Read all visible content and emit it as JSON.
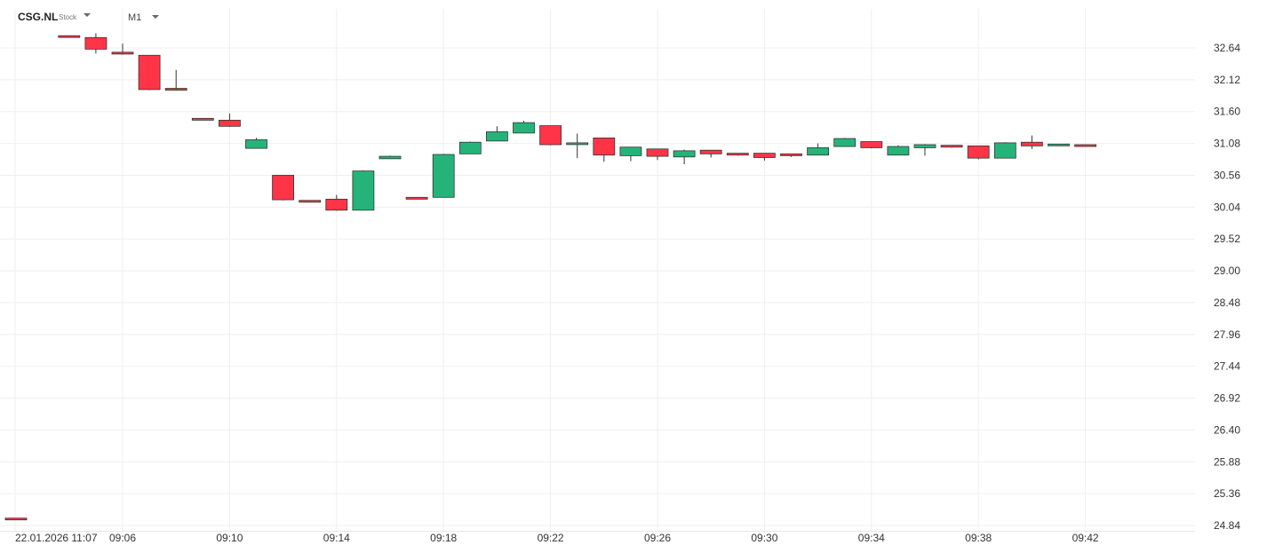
{
  "header": {
    "symbol": "CSG.NL",
    "symbol_type": "Stock",
    "timeframe": "M1"
  },
  "colors": {
    "up": "#26b37a",
    "down": "#ff3547",
    "grid": "#efefef",
    "axis_text": "#333333"
  },
  "chart_data": {
    "type": "candlestick",
    "ylim": [
      24.84,
      32.9
    ],
    "y_ticks": [
      "32.64",
      "32.12",
      "31.60",
      "31.08",
      "30.56",
      "30.04",
      "29.52",
      "29.00",
      "28.48",
      "27.96",
      "27.44",
      "26.92",
      "26.40",
      "25.88",
      "25.36",
      "24.84"
    ],
    "x_ticks": [
      {
        "label": "22.01.2026  11:07",
        "index": -3.7
      },
      {
        "label": "09:06",
        "index": 0
      },
      {
        "label": "09:10",
        "index": 4
      },
      {
        "label": "09:14",
        "index": 8
      },
      {
        "label": "09:18",
        "index": 12
      },
      {
        "label": "09:22",
        "index": 16
      },
      {
        "label": "09:26",
        "index": 20
      },
      {
        "label": "09:30",
        "index": 24
      },
      {
        "label": "09:34",
        "index": 28
      },
      {
        "label": "09:38",
        "index": 32
      },
      {
        "label": "09:42",
        "index": 36
      }
    ],
    "prior_candle": {
      "time": "11:07",
      "index": -4.2,
      "open": 24.96,
      "high": 24.96,
      "low": 24.95,
      "close": 24.95
    },
    "candles": [
      {
        "time": "09:04",
        "open": 32.84,
        "high": 32.84,
        "low": 32.82,
        "close": 32.82
      },
      {
        "time": "09:05",
        "open": 32.81,
        "high": 32.88,
        "low": 32.55,
        "close": 32.62
      },
      {
        "time": "09:06",
        "open": 32.57,
        "high": 32.71,
        "low": 32.53,
        "close": 32.54
      },
      {
        "time": "09:07",
        "open": 32.52,
        "high": 32.52,
        "low": 31.95,
        "close": 31.96
      },
      {
        "time": "09:08",
        "open": 31.98,
        "high": 32.28,
        "low": 31.94,
        "close": 31.95
      },
      {
        "time": "09:09",
        "open": 31.49,
        "high": 31.49,
        "low": 31.46,
        "close": 31.46
      },
      {
        "time": "09:10",
        "open": 31.46,
        "high": 31.57,
        "low": 31.35,
        "close": 31.36
      },
      {
        "time": "09:11",
        "open": 31.0,
        "high": 31.17,
        "low": 31.0,
        "close": 31.14
      },
      {
        "time": "09:12",
        "open": 30.56,
        "high": 30.56,
        "low": 30.15,
        "close": 30.16
      },
      {
        "time": "09:13",
        "open": 30.15,
        "high": 30.15,
        "low": 30.12,
        "close": 30.12
      },
      {
        "time": "09:14",
        "open": 30.17,
        "high": 30.24,
        "low": 29.98,
        "close": 29.99
      },
      {
        "time": "09:15",
        "open": 29.99,
        "high": 30.64,
        "low": 29.99,
        "close": 30.63
      },
      {
        "time": "09:16",
        "open": 30.83,
        "high": 30.88,
        "low": 30.83,
        "close": 30.87
      },
      {
        "time": "09:17",
        "open": 30.2,
        "high": 30.2,
        "low": 30.17,
        "close": 30.17
      },
      {
        "time": "09:18",
        "open": 30.2,
        "high": 30.91,
        "low": 30.2,
        "close": 30.9
      },
      {
        "time": "09:19",
        "open": 30.91,
        "high": 31.11,
        "low": 30.91,
        "close": 31.1
      },
      {
        "time": "09:20",
        "open": 31.12,
        "high": 31.36,
        "low": 31.12,
        "close": 31.27
      },
      {
        "time": "09:21",
        "open": 31.25,
        "high": 31.45,
        "low": 31.25,
        "close": 31.42
      },
      {
        "time": "09:22",
        "open": 31.37,
        "high": 31.37,
        "low": 31.05,
        "close": 31.06
      },
      {
        "time": "09:23",
        "open": 31.07,
        "high": 31.24,
        "low": 30.84,
        "close": 31.09
      },
      {
        "time": "09:24",
        "open": 31.17,
        "high": 31.17,
        "low": 30.78,
        "close": 30.89
      },
      {
        "time": "09:25",
        "open": 30.88,
        "high": 31.02,
        "low": 30.79,
        "close": 31.02
      },
      {
        "time": "09:26",
        "open": 30.99,
        "high": 30.99,
        "low": 30.81,
        "close": 30.87
      },
      {
        "time": "09:27",
        "open": 30.86,
        "high": 30.98,
        "low": 30.74,
        "close": 30.96
      },
      {
        "time": "09:28",
        "open": 30.97,
        "high": 30.97,
        "low": 30.85,
        "close": 30.91
      },
      {
        "time": "09:29",
        "open": 30.92,
        "high": 30.92,
        "low": 30.88,
        "close": 30.89
      },
      {
        "time": "09:30",
        "open": 30.92,
        "high": 30.92,
        "low": 30.8,
        "close": 30.85
      },
      {
        "time": "09:31",
        "open": 30.91,
        "high": 30.91,
        "low": 30.86,
        "close": 30.88
      },
      {
        "time": "09:32",
        "open": 30.89,
        "high": 31.08,
        "low": 30.89,
        "close": 31.01
      },
      {
        "time": "09:33",
        "open": 31.03,
        "high": 31.17,
        "low": 31.03,
        "close": 31.16
      },
      {
        "time": "09:34",
        "open": 31.11,
        "high": 31.11,
        "low": 31.0,
        "close": 31.01
      },
      {
        "time": "09:35",
        "open": 30.89,
        "high": 31.05,
        "low": 30.89,
        "close": 31.03
      },
      {
        "time": "09:36",
        "open": 31.01,
        "high": 31.07,
        "low": 30.88,
        "close": 31.06
      },
      {
        "time": "09:37",
        "open": 31.05,
        "high": 31.05,
        "low": 31.01,
        "close": 31.02
      },
      {
        "time": "09:38",
        "open": 31.04,
        "high": 31.04,
        "low": 30.82,
        "close": 30.84
      },
      {
        "time": "09:39",
        "open": 30.84,
        "high": 31.1,
        "low": 30.84,
        "close": 31.09
      },
      {
        "time": "09:40",
        "open": 31.1,
        "high": 31.21,
        "low": 30.99,
        "close": 31.04
      },
      {
        "time": "09:41",
        "open": 31.05,
        "high": 31.07,
        "low": 31.05,
        "close": 31.07
      },
      {
        "time": "09:42",
        "open": 31.06,
        "high": 31.06,
        "low": 31.03,
        "close": 31.03
      }
    ]
  }
}
